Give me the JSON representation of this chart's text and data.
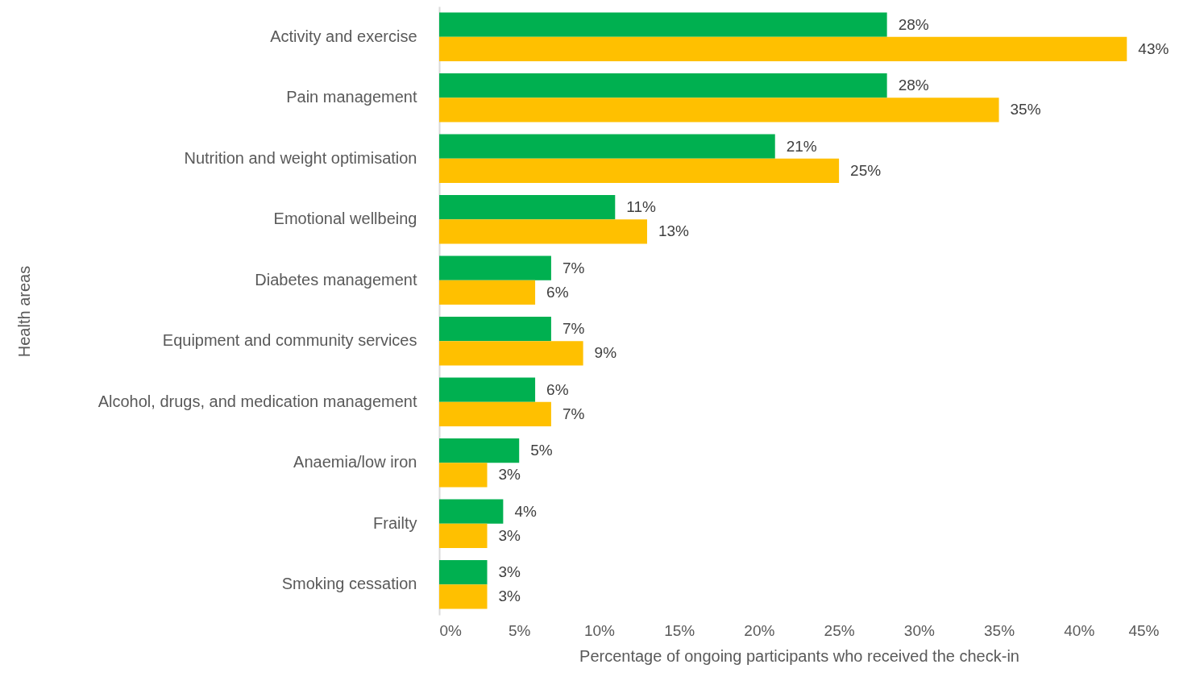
{
  "chart_data": {
    "type": "bar",
    "orientation": "horizontal",
    "xlabel": "Percentage of ongoing participants who received the check-in",
    "ylabel": "Health areas",
    "categories": [
      "Activity and exercise",
      "Pain management",
      "Nutrition and weight optimisation",
      "Emotional wellbeing",
      "Diabetes management",
      "Equipment and community services",
      "Alcohol, drugs, and medication management",
      "Anaemia/low iron",
      "Frailty",
      "Smoking cessation"
    ],
    "series": [
      {
        "color": "#00b050",
        "values": [
          28,
          28,
          21,
          11,
          7,
          7,
          6,
          5,
          4,
          3
        ],
        "value_labels": [
          "28%",
          "28%",
          "21%",
          "11%",
          "7%",
          "7%",
          "6%",
          "5%",
          "4%",
          "3%"
        ]
      },
      {
        "color": "#ffc000",
        "values": [
          43,
          35,
          25,
          13,
          6,
          9,
          7,
          3,
          3,
          3
        ],
        "value_labels": [
          "43%",
          "35%",
          "25%",
          "13%",
          "6%",
          "9%",
          "7%",
          "3%",
          "3%",
          "3%"
        ]
      }
    ],
    "xlim": [
      0,
      45
    ],
    "xticks": [
      {
        "value": 0,
        "label": "0%"
      },
      {
        "value": 5,
        "label": "5%"
      },
      {
        "value": 10,
        "label": "10%"
      },
      {
        "value": 15,
        "label": "15%"
      },
      {
        "value": 20,
        "label": "20%"
      },
      {
        "value": 25,
        "label": "25%"
      },
      {
        "value": 30,
        "label": "30%"
      },
      {
        "value": 35,
        "label": "35%"
      },
      {
        "value": 40,
        "label": "40%"
      },
      {
        "value": 45,
        "label": "45%"
      }
    ],
    "grid": false
  }
}
